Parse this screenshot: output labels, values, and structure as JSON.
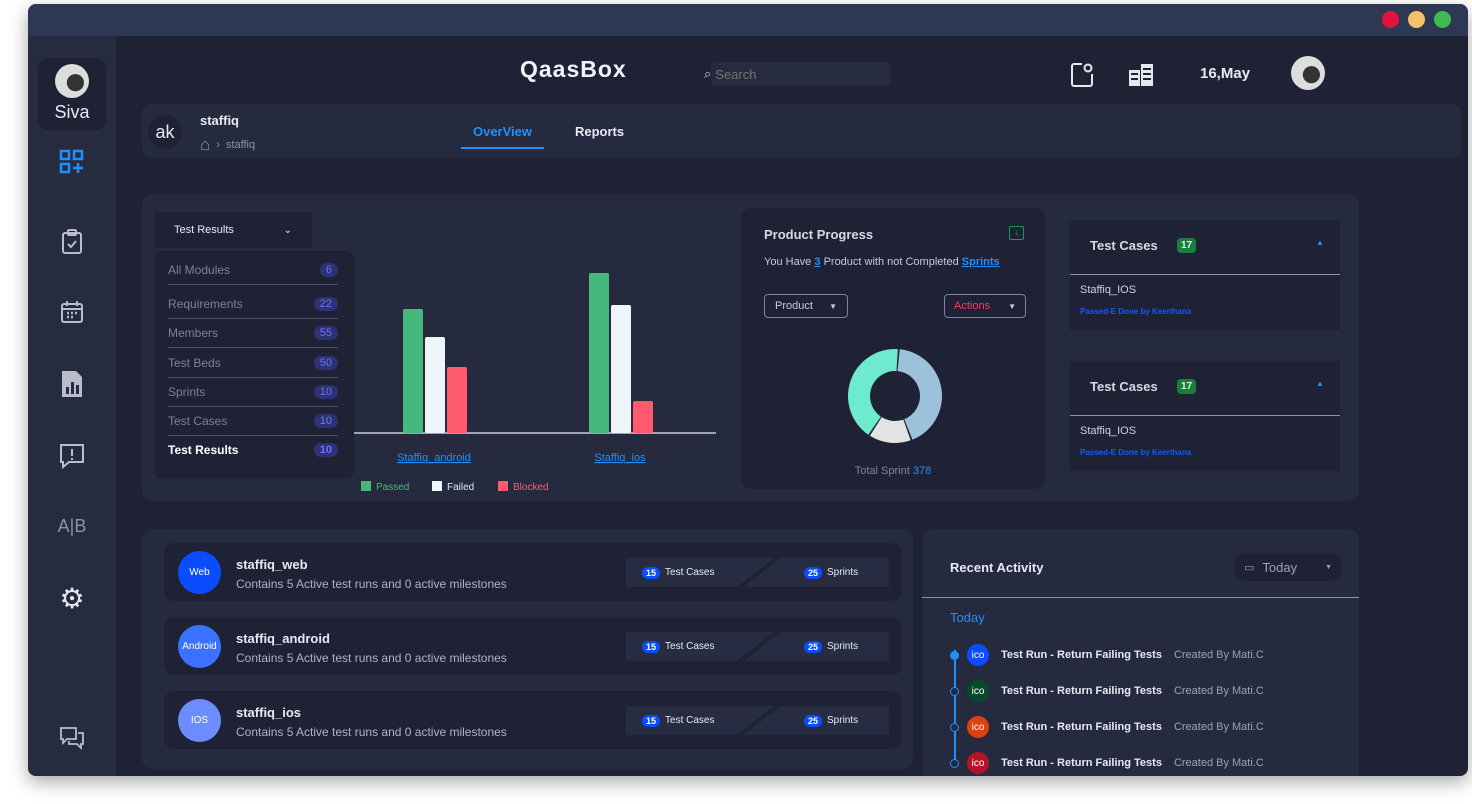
{
  "window": {
    "controls": {
      "close": "#e0143c",
      "minimize": "#f5c06b",
      "maximize": "#3fb950"
    }
  },
  "sidebar": {
    "user_name": "Siva",
    "items": [
      {
        "icon": "dashboard-add-icon"
      },
      {
        "icon": "clipboard-icon"
      },
      {
        "icon": "calendar-icon"
      },
      {
        "icon": "report-chart-icon"
      },
      {
        "icon": "alert-message-icon"
      },
      {
        "icon": "ab-test-icon",
        "label": "A|B"
      },
      {
        "icon": "gear-icon"
      },
      {
        "icon": "chat-icon"
      }
    ]
  },
  "header": {
    "logo": "QaasBox",
    "search_placeholder": "Search",
    "date": "16,May"
  },
  "project_bar": {
    "avatar": "ak",
    "title": "staffiq",
    "breadcrumb": "staffiq",
    "tabs": [
      {
        "label": "OverView",
        "active": true
      },
      {
        "label": "Reports"
      }
    ]
  },
  "modules": {
    "dropdown_label": "Test Results",
    "items": [
      {
        "label": "All Modules",
        "count": "6"
      },
      {
        "label": "Requirements",
        "count": "22"
      },
      {
        "label": "Members",
        "count": "55"
      },
      {
        "label": "Test Beds",
        "count": "50"
      },
      {
        "label": "Sprints",
        "count": "10"
      },
      {
        "label": "Test Cases",
        "count": "10"
      },
      {
        "label": "Test Results",
        "count": "10",
        "active": true
      }
    ]
  },
  "chart_data": {
    "type": "bar",
    "categories": [
      "Staffiq_android",
      "Staffiq_ios"
    ],
    "series": [
      {
        "name": "Passed",
        "color": "#45b97c",
        "values": [
          62,
          80
        ]
      },
      {
        "name": "Failed",
        "color": "#eef6fb",
        "values": [
          48,
          64
        ]
      },
      {
        "name": "Blocked",
        "color": "#ff5a6e",
        "values": [
          33,
          16
        ]
      }
    ],
    "ylim": [
      0,
      80
    ],
    "legend": "bottom"
  },
  "product_progress": {
    "title": "Product Progress",
    "text_pre": "You Have",
    "count": "3",
    "text_mid": "Product with not Completed",
    "link": "Sprints",
    "product_label": "Product",
    "actions_label": "Actions",
    "total_label": "Total Sprint",
    "total": "378",
    "donut": [
      {
        "name": "a",
        "value": 43,
        "color": "#9dc1da"
      },
      {
        "name": "b",
        "value": 15,
        "color": "#e3e3e3"
      },
      {
        "name": "c",
        "value": 42,
        "color": "#6eeacf"
      }
    ]
  },
  "test_case_panels": [
    {
      "title": "Test Cases",
      "count": "17",
      "item": "Staffiq_IOS",
      "status": "Passed-E Done by Keerthana"
    },
    {
      "title": "Test Cases",
      "count": "17",
      "item": "Staffiq_IOS",
      "status": "Passed-E Done by Keerthana"
    }
  ],
  "projects": [
    {
      "badge": "Web",
      "color": "#0b4cff",
      "name": "staffiq_web",
      "desc": "Contains 5 Active test runs and 0 active milestones",
      "test_cases": "15",
      "test_cases_label": "Test Cases",
      "sprints": "25",
      "sprints_label": "Sprints"
    },
    {
      "badge": "Android",
      "color": "#3a72ff",
      "name": "staffiq_android",
      "desc": "Contains 5 Active test runs and 0 active milestones",
      "test_cases": "15",
      "test_cases_label": "Test Cases",
      "sprints": "25",
      "sprints_label": "Sprints"
    },
    {
      "badge": "IOS",
      "color": "#6c8cff",
      "name": "staffiq_ios",
      "desc": "Contains 5 Active test runs and 0 active milestones",
      "test_cases": "15",
      "test_cases_label": "Test Cases",
      "sprints": "25",
      "sprints_label": "Sprints"
    }
  ],
  "recent_activity": {
    "title": "Recent Activity",
    "filter": "Today",
    "group": "Today",
    "items": [
      {
        "icon": "ico",
        "color": "#0b4cff",
        "title": "Test Run - Return Failing Tests",
        "by": "Created By Mati.C"
      },
      {
        "icon": "ico",
        "color": "#064a2c",
        "title": "Test Run - Return Failing Tests",
        "by": "Created By Mati.C"
      },
      {
        "icon": "ico",
        "color": "#e04010",
        "title": "Test Run - Return Failing Tests",
        "by": "Created By Mati.C"
      },
      {
        "icon": "ico",
        "color": "#b3142a",
        "title": "Test Run - Return Failing Tests",
        "by": "Created By Mati.C"
      }
    ]
  }
}
